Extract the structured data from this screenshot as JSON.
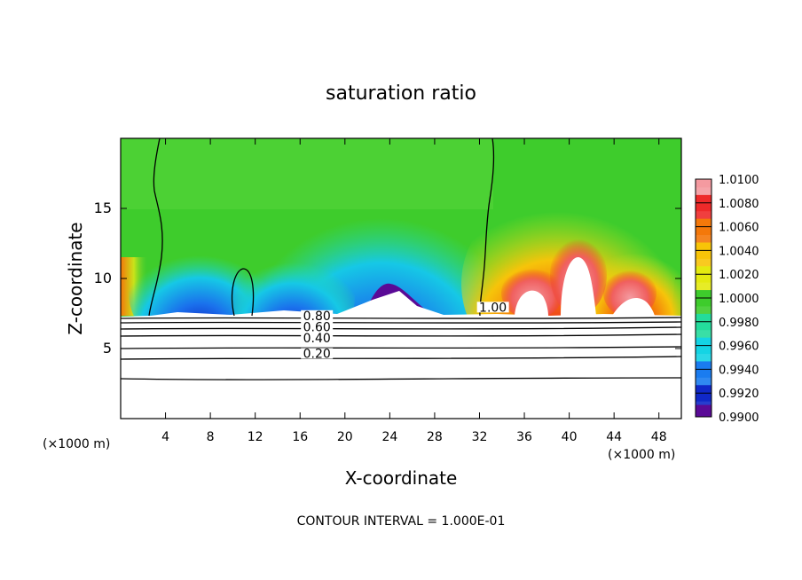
{
  "chart_data": {
    "type": "heatmap",
    "title": "saturation ratio",
    "xlabel": "X-coordinate",
    "ylabel": "Z-coordinate",
    "x_unit_left": "(×1000 m)",
    "x_unit_right": "(×1000 m)",
    "footer": "CONTOUR INTERVAL = 1.000E-01",
    "xlim": [
      0,
      50
    ],
    "ylim": [
      0,
      20
    ],
    "xticks": [
      4,
      8,
      12,
      16,
      20,
      24,
      28,
      32,
      36,
      40,
      44,
      48
    ],
    "yticks": [
      5,
      10,
      15
    ],
    "colorbar": {
      "min": 0.99,
      "max": 1.01,
      "labels": [
        "1.0100",
        "1.0080",
        "1.0060",
        "1.0040",
        "1.0020",
        "1.0000",
        "0.9980",
        "0.9960",
        "0.9940",
        "0.9920",
        "0.9900"
      ],
      "colors": [
        "#f49aa0",
        "#ee2a2a",
        "#f4780a",
        "#f8c408",
        "#e4ea10",
        "#3ecc2c",
        "#24dc9c",
        "#14d4e4",
        "#1a7cf0",
        "#1028c8",
        "#5a0a96"
      ]
    },
    "contour_labels": [
      {
        "text": "1.00",
        "x": 33.2,
        "y": 7.7
      },
      {
        "text": "0.80",
        "x": 17.5,
        "y": 7.1
      },
      {
        "text": "0.60",
        "x": 17.5,
        "y": 6.3
      },
      {
        "text": "0.40",
        "x": 17.5,
        "y": 5.5
      },
      {
        "text": "0.20",
        "x": 17.5,
        "y": 4.4
      }
    ]
  }
}
